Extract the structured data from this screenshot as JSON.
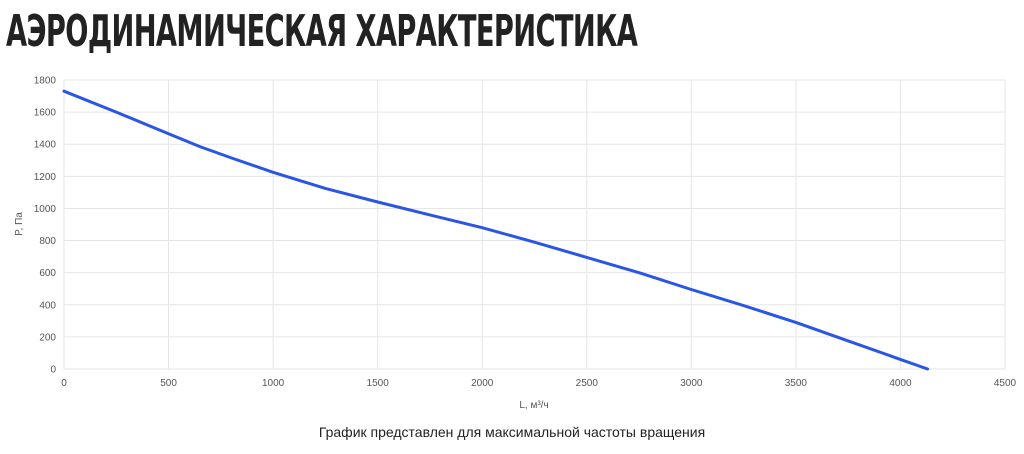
{
  "title": "АЭРОДИНАМИЧЕСКАЯ ХАРАКТЕРИСТИКА",
  "caption": "График представлен для максимальной частоты вращения",
  "chart_data": {
    "type": "line",
    "xlabel": "L, м³/ч",
    "ylabel": "P, Па",
    "xlim": [
      0,
      4500
    ],
    "ylim": [
      0,
      1800
    ],
    "x_ticks": [
      0,
      500,
      1000,
      1500,
      2000,
      2500,
      3000,
      3500,
      4000,
      4500
    ],
    "y_ticks": [
      0,
      200,
      400,
      600,
      800,
      1000,
      1200,
      1400,
      1600,
      1800
    ],
    "grid": true,
    "line_color": "#2a55e5",
    "grid_color": "#e6e6e6",
    "series": [
      {
        "x": [
          0,
          250,
          500,
          650,
          800,
          1000,
          1250,
          1500,
          1750,
          2000,
          2250,
          2500,
          2750,
          3000,
          3250,
          3500,
          3750,
          4000,
          4130
        ],
        "y": [
          1730,
          1600,
          1465,
          1385,
          1315,
          1225,
          1125,
          1040,
          960,
          880,
          790,
          695,
          600,
          495,
          395,
          290,
          175,
          60,
          0
        ]
      }
    ]
  }
}
